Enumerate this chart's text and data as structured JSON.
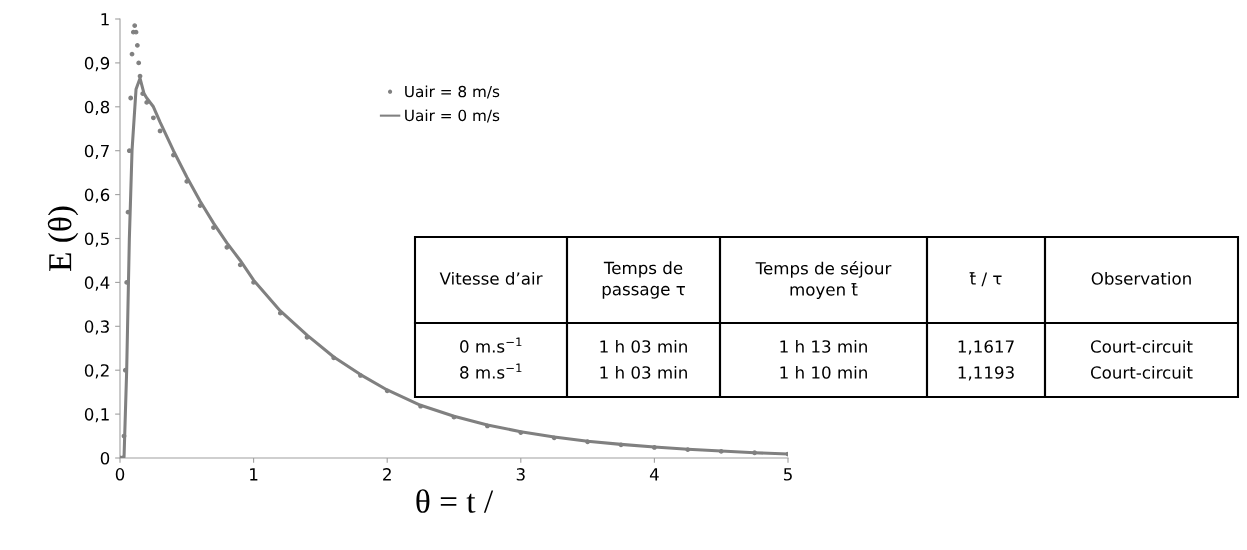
{
  "chart_data": {
    "type": "line",
    "xlabel": "θ = t /",
    "ylabel": "E (θ)",
    "xlim": [
      0,
      5
    ],
    "xticks": [
      0,
      1,
      2,
      3,
      4,
      5
    ],
    "ylim": [
      0,
      1
    ],
    "yticks": [
      0,
      {
        "value": 0.1,
        "label": "0,1"
      },
      {
        "value": 0.2,
        "label": "0,2"
      },
      {
        "value": 0.3,
        "label": "0,3"
      },
      {
        "value": 0.4,
        "label": "0,4"
      },
      {
        "value": 0.5,
        "label": "0,5"
      },
      {
        "value": 0.6,
        "label": "0,6"
      },
      {
        "value": 0.7,
        "label": "0,7"
      },
      {
        "value": 0.8,
        "label": "0,8"
      },
      {
        "value": 0.9,
        "label": "0,9"
      },
      1
    ],
    "grid": false,
    "legend": "top right",
    "series": [
      {
        "name": "Uair = 8 m/s",
        "type": "scatter",
        "marker": "circle",
        "color": "#808080",
        "x": [
          0,
          0.02,
          0.03,
          0.04,
          0.05,
          0.06,
          0.07,
          0.08,
          0.09,
          0.1,
          0.11,
          0.12,
          0.13,
          0.14,
          0.15,
          0.17,
          0.2,
          0.25,
          0.3,
          0.4,
          0.5,
          0.6,
          0.7,
          0.8,
          0.9,
          1.0,
          1.2,
          1.4,
          1.6,
          1.8,
          2.0,
          2.25,
          2.5,
          2.75,
          3.0,
          3.25,
          3.5,
          3.75,
          4.0,
          4.25,
          4.5,
          4.75,
          5.0
        ],
        "values": [
          0,
          0,
          0.05,
          0.2,
          0.4,
          0.56,
          0.7,
          0.82,
          0.92,
          0.97,
          0.985,
          0.97,
          0.94,
          0.9,
          0.87,
          0.83,
          0.81,
          0.775,
          0.745,
          0.69,
          0.63,
          0.575,
          0.525,
          0.48,
          0.44,
          0.4,
          0.33,
          0.275,
          0.228,
          0.188,
          0.153,
          0.118,
          0.093,
          0.073,
          0.058,
          0.046,
          0.037,
          0.03,
          0.024,
          0.019,
          0.015,
          0.012,
          0.009
        ]
      },
      {
        "name": "Uair = 0 m/s",
        "marker": "none",
        "line_style": "solid",
        "color": "#808080",
        "x": [
          0,
          0.03,
          0.05,
          0.07,
          0.09,
          0.12,
          0.15,
          0.18,
          0.2,
          0.25,
          0.3,
          0.4,
          0.5,
          0.6,
          0.7,
          0.8,
          0.9,
          1.0,
          1.2,
          1.4,
          1.6,
          1.8,
          2.0,
          2.25,
          2.5,
          2.75,
          3.0,
          3.25,
          3.5,
          3.75,
          4.0,
          4.25,
          4.5,
          4.75,
          5.0
        ],
        "values": [
          0,
          0,
          0.2,
          0.5,
          0.7,
          0.84,
          0.865,
          0.83,
          0.82,
          0.8,
          0.765,
          0.7,
          0.64,
          0.585,
          0.535,
          0.49,
          0.45,
          0.405,
          0.335,
          0.28,
          0.23,
          0.19,
          0.155,
          0.12,
          0.095,
          0.075,
          0.06,
          0.048,
          0.038,
          0.031,
          0.025,
          0.02,
          0.016,
          0.012,
          0.009
        ]
      }
    ],
    "annotations": [
      "Vitesse d’air",
      "Temps de\npassage τ",
      "Temps de séjour\nmoyen t̄",
      "t̄ / τ",
      "Observation",
      "0 m.s$^{−1}$",
      "1 h 03 min",
      "1 h 13 min",
      "1,1617",
      "Court-circuit",
      "8 m.s$^{−1}$",
      "1 h 03 min",
      "1 h 10 min",
      "1,1193",
      "Court-circuit"
    ]
  }
}
